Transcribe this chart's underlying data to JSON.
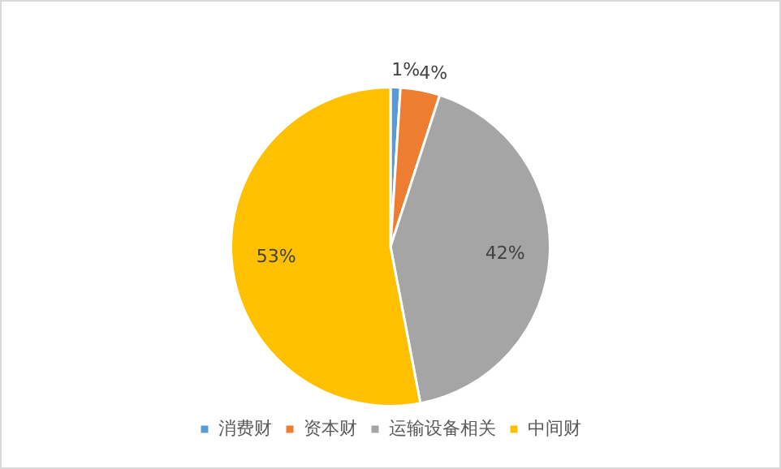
{
  "chart_data": {
    "type": "pie",
    "categories": [
      "消费财",
      "资本财",
      "运输设备相关",
      "中间财"
    ],
    "values": [
      1,
      4,
      42,
      53
    ],
    "value_labels": [
      "1%",
      "4%",
      "42%",
      "53%"
    ],
    "colors": [
      "#5b9bd5",
      "#ed7d31",
      "#a5a5a5",
      "#ffc000"
    ],
    "legend": "bottom"
  }
}
